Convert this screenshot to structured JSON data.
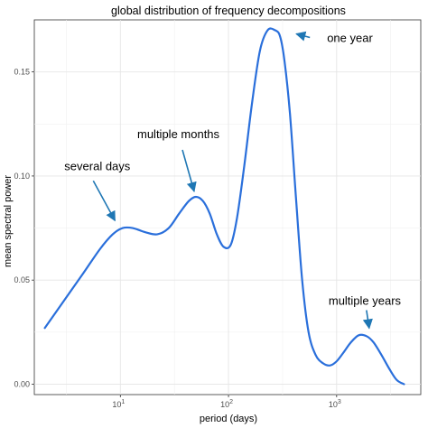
{
  "chart_data": {
    "type": "line",
    "title": "global distribution of frequency decompositions",
    "xlabel": "period (days)",
    "ylabel": "mean spectral power",
    "xscale": "log10",
    "xlim": [
      1.6,
      6000
    ],
    "ylim": [
      -0.005,
      0.175
    ],
    "x_ticks": [
      {
        "value": 10,
        "base": "10",
        "exp": "1"
      },
      {
        "value": 100,
        "base": "10",
        "exp": "2"
      },
      {
        "value": 1000,
        "base": "10",
        "exp": "3"
      }
    ],
    "y_ticks": [
      {
        "value": 0.0,
        "label": "0.00"
      },
      {
        "value": 0.05,
        "label": "0.05"
      },
      {
        "value": 0.1,
        "label": "0.10"
      },
      {
        "value": 0.15,
        "label": "0.15"
      }
    ],
    "grid": true,
    "line_color": "#2a6fdb",
    "series": [
      {
        "x": [
          2.0,
          3.0,
          4.5,
          6.5,
          8.5,
          10.5,
          13,
          17,
          22,
          28,
          35,
          43,
          50,
          58,
          67,
          78,
          90,
          105,
          120,
          140,
          165,
          195,
          230,
          270,
          300,
          330,
          370,
          420,
          480,
          550,
          640,
          750,
          870,
          1000,
          1150,
          1350,
          1600,
          1900,
          2200,
          2600,
          3100,
          3600,
          4200
        ],
        "y": [
          0.027,
          0.04,
          0.053,
          0.065,
          0.072,
          0.075,
          0.075,
          0.073,
          0.072,
          0.075,
          0.082,
          0.088,
          0.09,
          0.088,
          0.082,
          0.072,
          0.066,
          0.067,
          0.08,
          0.105,
          0.135,
          0.16,
          0.17,
          0.17,
          0.167,
          0.155,
          0.13,
          0.09,
          0.05,
          0.025,
          0.014,
          0.01,
          0.009,
          0.011,
          0.015,
          0.02,
          0.0235,
          0.023,
          0.02,
          0.014,
          0.007,
          0.002,
          0.0
        ]
      }
    ],
    "annotations": [
      {
        "text": "several days",
        "x": 10,
        "y": 0.076
      },
      {
        "text": "multiple months",
        "x": 50,
        "y": 0.09
      },
      {
        "text": "one year",
        "x": 300,
        "y": 0.17
      },
      {
        "text": "multiple years",
        "x": 2000,
        "y": 0.026
      }
    ],
    "arrow_color": "#1f77b4"
  }
}
